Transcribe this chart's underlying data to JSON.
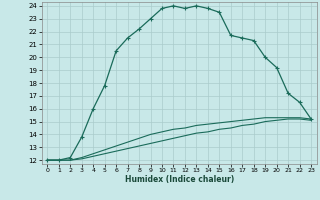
{
  "title": "",
  "xlabel": "Humidex (Indice chaleur)",
  "background_color": "#c8e8e8",
  "grid_color": "#aacccc",
  "line_color": "#1a6b5a",
  "xlim": [
    -0.5,
    23.5
  ],
  "ylim": [
    11.7,
    24.3
  ],
  "xticks": [
    0,
    1,
    2,
    3,
    4,
    5,
    6,
    7,
    8,
    9,
    10,
    11,
    12,
    13,
    14,
    15,
    16,
    17,
    18,
    19,
    20,
    21,
    22,
    23
  ],
  "yticks": [
    12,
    13,
    14,
    15,
    16,
    17,
    18,
    19,
    20,
    21,
    22,
    23,
    24
  ],
  "line1_x": [
    0,
    1,
    2,
    3,
    4,
    5,
    6,
    7,
    8,
    9,
    10,
    11,
    12,
    13,
    14,
    15,
    16,
    17,
    18,
    19,
    20,
    21,
    22,
    23
  ],
  "line1_y": [
    12,
    12,
    12.2,
    13.8,
    16.0,
    17.8,
    20.5,
    21.5,
    22.2,
    23.0,
    23.8,
    24.0,
    23.8,
    24.0,
    23.8,
    23.5,
    21.7,
    21.5,
    21.3,
    20.0,
    19.2,
    17.2,
    16.5,
    15.2
  ],
  "line2_x": [
    0,
    1,
    2,
    3,
    4,
    5,
    6,
    7,
    8,
    9,
    10,
    11,
    12,
    13,
    14,
    15,
    16,
    17,
    18,
    19,
    20,
    21,
    22,
    23
  ],
  "line2_y": [
    12,
    12,
    12,
    12.2,
    12.5,
    12.8,
    13.1,
    13.4,
    13.7,
    14.0,
    14.2,
    14.4,
    14.5,
    14.7,
    14.8,
    14.9,
    15.0,
    15.1,
    15.2,
    15.3,
    15.3,
    15.3,
    15.3,
    15.2
  ],
  "line3_x": [
    0,
    1,
    2,
    3,
    4,
    5,
    6,
    7,
    8,
    9,
    10,
    11,
    12,
    13,
    14,
    15,
    16,
    17,
    18,
    19,
    20,
    21,
    22,
    23
  ],
  "line3_y": [
    12,
    12,
    12,
    12.1,
    12.3,
    12.5,
    12.7,
    12.9,
    13.1,
    13.3,
    13.5,
    13.7,
    13.9,
    14.1,
    14.2,
    14.4,
    14.5,
    14.7,
    14.8,
    15.0,
    15.1,
    15.2,
    15.2,
    15.1
  ]
}
